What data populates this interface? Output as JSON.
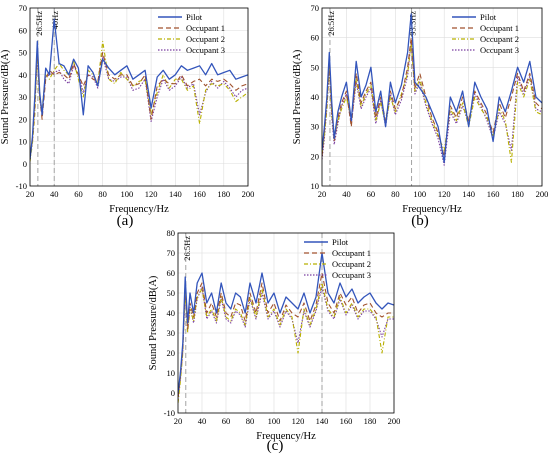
{
  "captions": [
    "(a)",
    "(b)",
    "(c)"
  ],
  "colors": {
    "pilot": "#3355bb",
    "occupant1": "#a0522d",
    "occupant2": "#b8b000",
    "occupant3": "#7a3fa0",
    "vline": "#999999"
  },
  "chart_data": [
    {
      "type": "line",
      "xlabel": "Frequency/Hz",
      "ylabel": "Sound Pressure/dB(A)",
      "xlim": [
        20,
        200
      ],
      "ylim": [
        -10,
        70
      ],
      "xticks": [
        20,
        40,
        60,
        80,
        100,
        120,
        140,
        160,
        180,
        200
      ],
      "yticks": [
        -10,
        0,
        10,
        20,
        30,
        40,
        50,
        60,
        70
      ],
      "grid": true,
      "legend": "top-right",
      "annotations": [
        {
          "x": 26.5,
          "text": "26.5Hz"
        },
        {
          "x": 40,
          "text": "40Hz"
        }
      ],
      "x": [
        20,
        22,
        24,
        26,
        28,
        30,
        33,
        36,
        40,
        44,
        48,
        52,
        56,
        60,
        64,
        68,
        72,
        76,
        80,
        85,
        90,
        95,
        100,
        105,
        110,
        115,
        120,
        125,
        130,
        135,
        140,
        145,
        150,
        155,
        160,
        165,
        170,
        175,
        180,
        185,
        190,
        195,
        200
      ],
      "series": [
        {
          "name": "Pilot",
          "values": [
            2,
            12,
            30,
            55,
            32,
            22,
            43,
            40,
            65,
            45,
            44,
            40,
            47,
            43,
            22,
            44,
            41,
            35,
            47,
            43,
            40,
            42,
            44,
            38,
            40,
            42,
            25,
            39,
            42,
            38,
            40,
            44,
            42,
            43,
            44,
            40,
            45,
            40,
            41,
            42,
            38,
            39,
            40
          ]
        },
        {
          "name": "Occupant 1",
          "values": [
            3,
            10,
            25,
            52,
            30,
            20,
            38,
            42,
            40,
            41,
            40,
            38,
            45,
            40,
            35,
            40,
            38,
            37,
            50,
            40,
            38,
            40,
            40,
            35,
            36,
            40,
            20,
            35,
            38,
            36,
            36,
            40,
            35,
            37,
            38,
            35,
            38,
            37,
            38,
            36,
            33,
            35,
            36
          ]
        },
        {
          "name": "Occupant 2",
          "values": [
            1,
            9,
            22,
            50,
            28,
            25,
            40,
            38,
            42,
            45,
            42,
            40,
            46,
            38,
            30,
            42,
            40,
            36,
            55,
            38,
            36,
            41,
            38,
            35,
            37,
            38,
            22,
            32,
            40,
            34,
            38,
            38,
            33,
            35,
            18,
            33,
            36,
            35,
            36,
            33,
            28,
            30,
            32
          ]
        },
        {
          "name": "Occupant 3",
          "values": [
            2,
            11,
            27,
            48,
            29,
            22,
            39,
            40,
            41,
            42,
            38,
            36,
            44,
            40,
            32,
            40,
            39,
            34,
            48,
            38,
            37,
            39,
            39,
            33,
            34,
            38,
            19,
            30,
            38,
            33,
            35,
            39,
            34,
            36,
            22,
            32,
            37,
            34,
            37,
            34,
            30,
            33,
            34
          ]
        }
      ]
    },
    {
      "type": "line",
      "xlabel": "Frequency/Hz",
      "ylabel": "Sound Pressure/dB(A)",
      "xlim": [
        20,
        200
      ],
      "ylim": [
        10,
        70
      ],
      "xticks": [
        20,
        40,
        60,
        80,
        100,
        120,
        140,
        160,
        180,
        200
      ],
      "yticks": [
        10,
        20,
        30,
        40,
        50,
        60,
        70
      ],
      "grid": true,
      "legend": "top-right",
      "annotations": [
        {
          "x": 26.5,
          "text": "26.5Hz"
        },
        {
          "x": 93.3,
          "text": "93.3Hz"
        }
      ],
      "x": [
        20,
        22,
        24,
        26,
        28,
        30,
        33,
        36,
        40,
        44,
        48,
        52,
        56,
        60,
        64,
        68,
        72,
        76,
        80,
        85,
        90,
        93,
        96,
        100,
        105,
        110,
        115,
        120,
        125,
        130,
        135,
        140,
        145,
        150,
        155,
        160,
        165,
        170,
        175,
        180,
        185,
        190,
        195,
        200
      ],
      "series": [
        {
          "name": "Pilot",
          "values": [
            22,
            30,
            40,
            55,
            38,
            26,
            35,
            40,
            45,
            32,
            52,
            40,
            44,
            50,
            35,
            42,
            30,
            45,
            38,
            44,
            55,
            68,
            45,
            43,
            40,
            35,
            30,
            18,
            40,
            35,
            42,
            30,
            45,
            40,
            36,
            25,
            40,
            35,
            42,
            50,
            45,
            52,
            40,
            38
          ]
        },
        {
          "name": "Occupant 1",
          "values": [
            20,
            28,
            38,
            52,
            35,
            25,
            33,
            38,
            42,
            30,
            48,
            38,
            42,
            45,
            33,
            40,
            32,
            42,
            36,
            40,
            50,
            60,
            43,
            48,
            40,
            33,
            28,
            20,
            37,
            33,
            40,
            32,
            42,
            38,
            34,
            28,
            38,
            33,
            40,
            48,
            42,
            48,
            38,
            36
          ]
        },
        {
          "name": "Occupant 2",
          "values": [
            21,
            27,
            36,
            50,
            34,
            27,
            32,
            36,
            40,
            33,
            46,
            37,
            41,
            44,
            32,
            38,
            31,
            40,
            35,
            41,
            48,
            58,
            42,
            46,
            38,
            32,
            27,
            22,
            36,
            32,
            38,
            30,
            40,
            36,
            33,
            27,
            36,
            32,
            18,
            45,
            40,
            46,
            35,
            34
          ]
        },
        {
          "name": "Occupant 3",
          "values": [
            19,
            26,
            37,
            49,
            33,
            24,
            31,
            37,
            41,
            31,
            45,
            36,
            40,
            43,
            31,
            39,
            30,
            41,
            34,
            39,
            47,
            59,
            41,
            45,
            37,
            31,
            26,
            17,
            35,
            31,
            37,
            31,
            41,
            37,
            32,
            26,
            35,
            31,
            22,
            47,
            41,
            47,
            36,
            35
          ]
        }
      ]
    },
    {
      "type": "line",
      "xlabel": "Frequency/Hz",
      "ylabel": "Sound Pressure/dB(A)",
      "xlim": [
        20,
        200
      ],
      "ylim": [
        -10,
        80
      ],
      "xticks": [
        20,
        40,
        60,
        80,
        100,
        120,
        140,
        160,
        180,
        200
      ],
      "yticks": [
        -10,
        0,
        10,
        20,
        30,
        40,
        50,
        60,
        70,
        80
      ],
      "grid": true,
      "legend": "top-right",
      "annotations": [
        {
          "x": 26.5,
          "text": "26.5Hz"
        },
        {
          "x": 140,
          "text": ""
        }
      ],
      "x": [
        20,
        22,
        24,
        26,
        28,
        30,
        33,
        36,
        40,
        44,
        48,
        52,
        56,
        60,
        64,
        68,
        72,
        76,
        80,
        85,
        90,
        95,
        100,
        105,
        110,
        115,
        120,
        125,
        130,
        135,
        140,
        145,
        150,
        155,
        160,
        165,
        170,
        175,
        180,
        185,
        190,
        195,
        200
      ],
      "series": [
        {
          "name": "Pilot",
          "values": [
            0,
            10,
            25,
            58,
            35,
            50,
            40,
            55,
            60,
            45,
            50,
            40,
            55,
            45,
            42,
            50,
            48,
            40,
            55,
            45,
            60,
            45,
            50,
            40,
            48,
            45,
            42,
            50,
            40,
            48,
            70,
            50,
            45,
            55,
            48,
            52,
            45,
            48,
            50,
            45,
            42,
            45,
            44
          ]
        },
        {
          "name": "Occupant 1",
          "values": [
            -2,
            8,
            22,
            55,
            32,
            45,
            38,
            50,
            55,
            40,
            45,
            38,
            50,
            40,
            38,
            45,
            44,
            36,
            50,
            40,
            55,
            40,
            45,
            36,
            44,
            40,
            38,
            45,
            36,
            44,
            60,
            45,
            40,
            50,
            44,
            48,
            40,
            44,
            45,
            40,
            38,
            40,
            40
          ]
        },
        {
          "name": "Occupant 2",
          "values": [
            -5,
            6,
            20,
            52,
            30,
            42,
            36,
            48,
            52,
            38,
            42,
            36,
            48,
            38,
            36,
            42,
            40,
            34,
            48,
            38,
            52,
            38,
            42,
            34,
            42,
            38,
            20,
            42,
            34,
            42,
            55,
            42,
            38,
            48,
            40,
            45,
            38,
            42,
            42,
            38,
            20,
            38,
            38
          ]
        },
        {
          "name": "Occupant 3",
          "values": [
            -3,
            7,
            21,
            50,
            31,
            43,
            35,
            47,
            53,
            37,
            41,
            35,
            47,
            37,
            35,
            41,
            39,
            33,
            47,
            37,
            50,
            37,
            41,
            33,
            41,
            37,
            25,
            41,
            33,
            41,
            53,
            41,
            37,
            47,
            39,
            44,
            37,
            41,
            41,
            37,
            28,
            37,
            37
          ]
        }
      ]
    }
  ]
}
